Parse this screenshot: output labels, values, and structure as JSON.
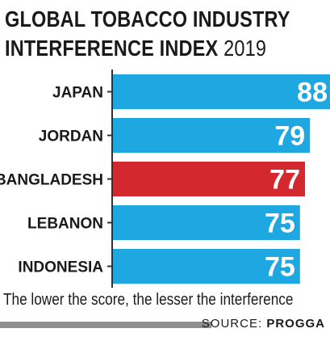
{
  "chart_data": {
    "type": "bar",
    "orientation": "horizontal",
    "title_line1": "GLOBAL TOBACCO INDUSTRY",
    "title_line2": "INTERFERENCE INDEX",
    "title_year": "2019",
    "categories": [
      "JAPAN",
      "JORDAN",
      "BANGLADESH",
      "LEBANON",
      "INDONESIA"
    ],
    "values": [
      88,
      79,
      77,
      75,
      75
    ],
    "bar_colors": [
      "#1ea7e1",
      "#1ea7e1",
      "#d2282e",
      "#1ea7e1",
      "#1ea7e1"
    ],
    "xlim": [
      0,
      88
    ],
    "grid": false,
    "legend": "none",
    "data_labels": true
  },
  "footer": {
    "note": "The lower the score, the lesser the interference",
    "source_prefix": "SOURCE:",
    "source_name": "PROGGA"
  },
  "colors": {
    "axis": "#333333",
    "accent_blue": "#1ea7e1",
    "accent_red": "#d2282e",
    "source_rule": "#8f8f8f"
  }
}
